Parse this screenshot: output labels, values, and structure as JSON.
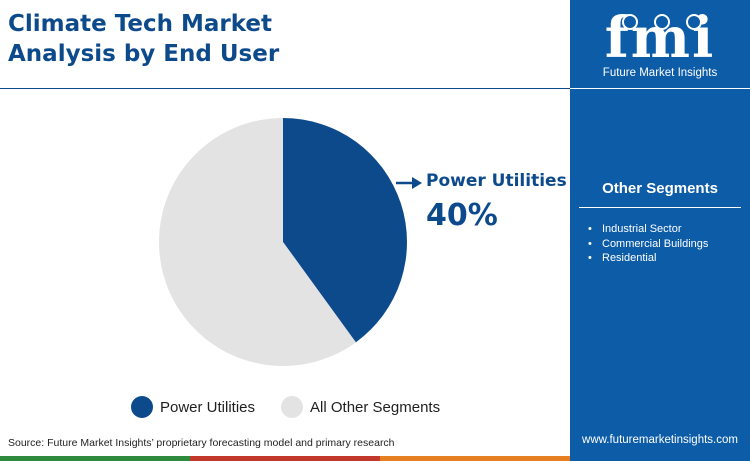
{
  "header": {
    "title_line1": "Climate Tech Market",
    "title_line2": "Analysis by End User"
  },
  "chart_data": {
    "type": "pie",
    "slices": [
      {
        "label": "Power Utilities",
        "value": 40,
        "color": "#0d4a8c"
      },
      {
        "label": "All Other Segments",
        "value": 60,
        "color": "#e3e3e3"
      }
    ],
    "legend": [
      "Power Utilities",
      "All Other Segments"
    ],
    "legend_position": "bottom",
    "callout": {
      "label": "Power Utilities",
      "value": "40%"
    }
  },
  "sidebar": {
    "logo_text": "fmi",
    "brand_name": "Future Market Insights",
    "other_segments_title": "Other Segments",
    "other_segments": [
      "Industrial Sector",
      "Commercial Buildings",
      "Residential"
    ],
    "website": "www.futuremarketinsights.com"
  },
  "footer": {
    "source": "Source: Future Market Insights’ proprietary forecasting model and primary research",
    "stripe_colors": [
      "#2e8b3d",
      "#c0392b",
      "#e67e22"
    ]
  },
  "colors": {
    "brand_blue": "#0d4a8c",
    "sidebar_blue": "#0d5ca8",
    "other_gray": "#e3e3e3"
  }
}
